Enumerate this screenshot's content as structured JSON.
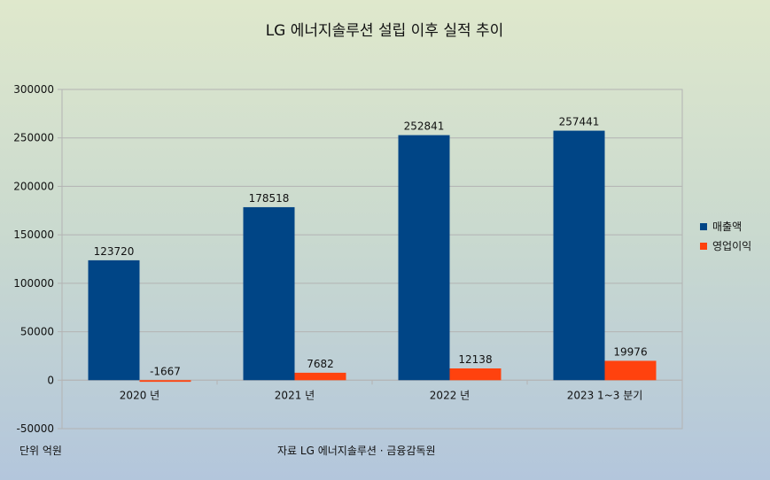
{
  "chart_data": {
    "type": "bar",
    "title": "LG 에너지솔루션 설립 이후 실적 추이",
    "categories": [
      "2020 년",
      "2021 년",
      "2022 년",
      "2023 1~3 분기"
    ],
    "series": [
      {
        "name": "매출액",
        "color": "#004586",
        "values": [
          123720,
          178518,
          252841,
          257441
        ]
      },
      {
        "name": "영업이익",
        "color": "#ff420e",
        "values": [
          -1667,
          7682,
          12138,
          19976
        ]
      }
    ],
    "data_labels": {
      "매출액": [
        "123720",
        "178518",
        "252841",
        "257441"
      ],
      "영업이익": [
        "-1667",
        "7682",
        "12138",
        "19976"
      ]
    },
    "ylim": [
      -50000,
      300000
    ],
    "yticks": [
      "300000",
      "250000",
      "200000",
      "150000",
      "100000",
      "50000",
      "0",
      "-50000"
    ],
    "grid": true,
    "legend_position": "right"
  },
  "notes": {
    "unit": "단위 억원",
    "source": "자료  LG 에너지솔루션 · 금융감독원"
  }
}
